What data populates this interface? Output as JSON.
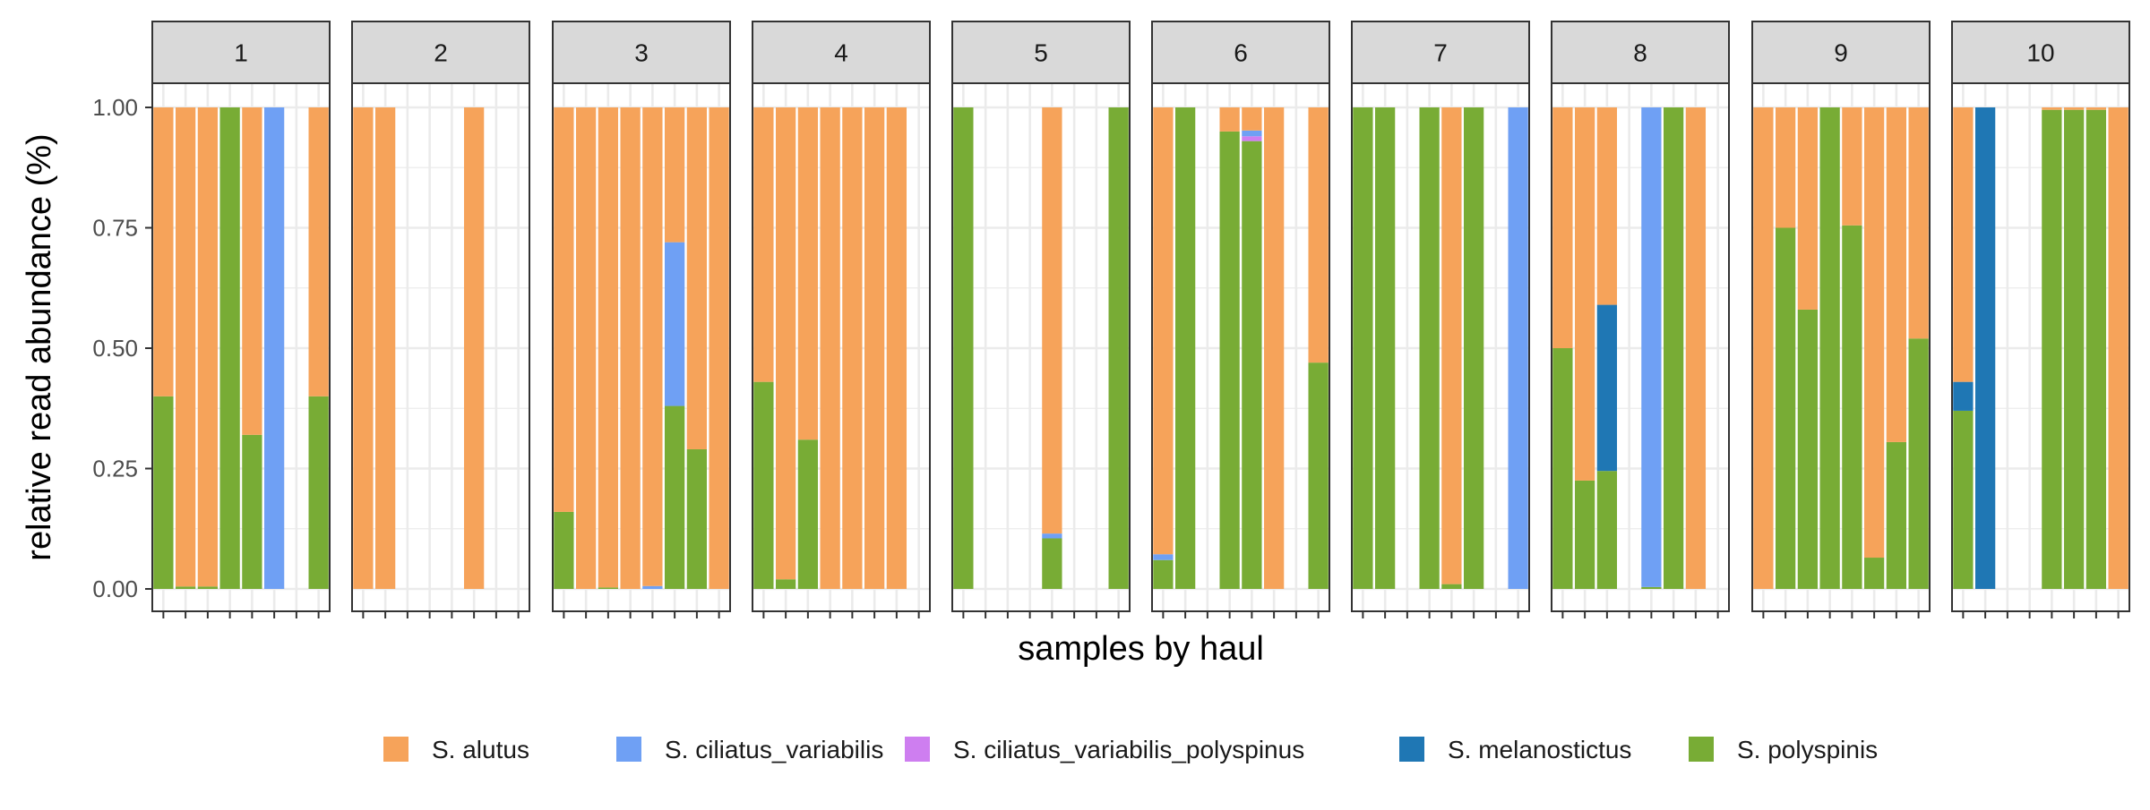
{
  "chart_data": {
    "type": "bar",
    "stacked": true,
    "facet_by": "haul",
    "xlabel": "samples by haul",
    "ylabel": "relative read abundance (%)",
    "ylim": [
      0,
      1.15
    ],
    "yticks": [
      "0.00",
      "0.25",
      "0.50",
      "0.75",
      "1.00"
    ],
    "ytick_values": [
      0,
      0.25,
      0.5,
      0.75,
      1.0
    ],
    "grid": true,
    "legend_position": "bottom",
    "legend": [
      {
        "key": "alutus",
        "label": "S. alutus",
        "color": "#F6A35A"
      },
      {
        "key": "ciliatus_variabilis",
        "label": "S. ciliatus_variabilis",
        "color": "#6FA0F4"
      },
      {
        "key": "ciliatus_variabilis_polyspinus",
        "label": "S. ciliatus_variabilis_polyspinus",
        "color": "#CE7EF0"
      },
      {
        "key": "melanostictus",
        "label": "S. melanostictus",
        "color": "#1F77B4"
      },
      {
        "key": "polyspinis",
        "label": "S. polyspinis",
        "color": "#78AC35"
      }
    ],
    "stack_order": [
      "polyspinis",
      "melanostictus",
      "ciliatus_variabilis_polyspinus",
      "ciliatus_variabilis",
      "alutus"
    ],
    "panels": [
      {
        "label": "1",
        "slots": 8,
        "samples": [
          {
            "slot": 0,
            "polyspinis": 0.4,
            "alutus": 0.6
          },
          {
            "slot": 1,
            "polyspinis": 0.005,
            "alutus": 0.995
          },
          {
            "slot": 2,
            "polyspinis": 0.005,
            "alutus": 0.995
          },
          {
            "slot": 3,
            "polyspinis": 1.0
          },
          {
            "slot": 4,
            "polyspinis": 0.32,
            "alutus": 0.68
          },
          {
            "slot": 5,
            "ciliatus_variabilis": 1.0
          },
          {
            "slot": 7,
            "polyspinis": 0.4,
            "alutus": 0.6
          }
        ]
      },
      {
        "label": "2",
        "slots": 8,
        "samples": [
          {
            "slot": 0,
            "alutus": 1.0
          },
          {
            "slot": 1,
            "alutus": 1.0
          },
          {
            "slot": 5,
            "alutus": 1.0
          }
        ]
      },
      {
        "label": "3",
        "slots": 8,
        "samples": [
          {
            "slot": 0,
            "polyspinis": 0.16,
            "alutus": 0.84
          },
          {
            "slot": 1,
            "alutus": 1.0
          },
          {
            "slot": 2,
            "polyspinis": 0.003,
            "alutus": 0.997
          },
          {
            "slot": 3,
            "alutus": 1.0
          },
          {
            "slot": 4,
            "ciliatus_variabilis": 0.006,
            "alutus": 0.994
          },
          {
            "slot": 5,
            "polyspinis": 0.38,
            "ciliatus_variabilis": 0.34,
            "alutus": 0.28
          },
          {
            "slot": 6,
            "polyspinis": 0.29,
            "alutus": 0.71
          },
          {
            "slot": 7,
            "alutus": 1.0
          }
        ]
      },
      {
        "label": "4",
        "slots": 8,
        "samples": [
          {
            "slot": 0,
            "polyspinis": 0.43,
            "alutus": 0.57
          },
          {
            "slot": 1,
            "polyspinis": 0.02,
            "alutus": 0.98
          },
          {
            "slot": 2,
            "polyspinis": 0.31,
            "alutus": 0.69
          },
          {
            "slot": 3,
            "alutus": 1.0
          },
          {
            "slot": 4,
            "alutus": 1.0
          },
          {
            "slot": 5,
            "alutus": 1.0
          },
          {
            "slot": 6,
            "alutus": 1.0
          }
        ]
      },
      {
        "label": "5",
        "slots": 8,
        "samples": [
          {
            "slot": 0,
            "polyspinis": 1.0
          },
          {
            "slot": 4,
            "polyspinis": 0.105,
            "ciliatus_variabilis": 0.01,
            "alutus": 0.885
          },
          {
            "slot": 7,
            "polyspinis": 1.0
          }
        ]
      },
      {
        "label": "6",
        "slots": 8,
        "samples": [
          {
            "slot": 0,
            "polyspinis": 0.06,
            "ciliatus_variabilis": 0.012,
            "alutus": 0.928
          },
          {
            "slot": 1,
            "polyspinis": 1.0
          },
          {
            "slot": 3,
            "polyspinis": 0.95,
            "alutus": 0.05
          },
          {
            "slot": 4,
            "polyspinis": 0.93,
            "ciliatus_variabilis": 0.012,
            "ciliatus_variabilis_polyspinus": 0.01,
            "alutus": 0.048
          },
          {
            "slot": 5,
            "alutus": 1.0
          },
          {
            "slot": 7,
            "polyspinis": 0.47,
            "alutus": 0.53
          }
        ]
      },
      {
        "label": "7",
        "slots": 8,
        "samples": [
          {
            "slot": 0,
            "polyspinis": 1.0
          },
          {
            "slot": 1,
            "polyspinis": 1.0
          },
          {
            "slot": 3,
            "polyspinis": 1.0
          },
          {
            "slot": 4,
            "polyspinis": 0.01,
            "alutus": 0.99
          },
          {
            "slot": 5,
            "polyspinis": 1.0
          },
          {
            "slot": 7,
            "ciliatus_variabilis": 1.0
          }
        ]
      },
      {
        "label": "8",
        "slots": 8,
        "samples": [
          {
            "slot": 0,
            "polyspinis": 0.5,
            "alutus": 0.5
          },
          {
            "slot": 1,
            "polyspinis": 0.225,
            "alutus": 0.775
          },
          {
            "slot": 2,
            "polyspinis": 0.245,
            "melanostictus": 0.345,
            "alutus": 0.41
          },
          {
            "slot": 4,
            "polyspinis": 0.004,
            "ciliatus_variabilis": 0.996
          },
          {
            "slot": 5,
            "polyspinis": 1.0
          },
          {
            "slot": 6,
            "alutus": 1.0
          }
        ]
      },
      {
        "label": "9",
        "slots": 8,
        "samples": [
          {
            "slot": 0,
            "alutus": 1.0
          },
          {
            "slot": 1,
            "polyspinis": 0.75,
            "alutus": 0.25
          },
          {
            "slot": 2,
            "polyspinis": 0.58,
            "alutus": 0.42
          },
          {
            "slot": 3,
            "polyspinis": 1.0
          },
          {
            "slot": 4,
            "polyspinis": 0.755,
            "alutus": 0.245
          },
          {
            "slot": 5,
            "polyspinis": 0.065,
            "alutus": 0.935
          },
          {
            "slot": 6,
            "polyspinis": 0.305,
            "alutus": 0.695
          },
          {
            "slot": 7,
            "polyspinis": 0.52,
            "alutus": 0.48
          }
        ]
      },
      {
        "label": "10",
        "slots": 8,
        "samples": [
          {
            "slot": 0,
            "polyspinis": 0.37,
            "melanostictus": 0.06,
            "alutus": 0.57
          },
          {
            "slot": 1,
            "melanostictus": 1.0
          },
          {
            "slot": 4,
            "polyspinis": 0.995,
            "alutus": 0.005
          },
          {
            "slot": 5,
            "polyspinis": 0.995,
            "alutus": 0.005
          },
          {
            "slot": 6,
            "polyspinis": 0.995,
            "alutus": 0.005
          },
          {
            "slot": 7,
            "alutus": 1.0
          }
        ]
      }
    ]
  }
}
